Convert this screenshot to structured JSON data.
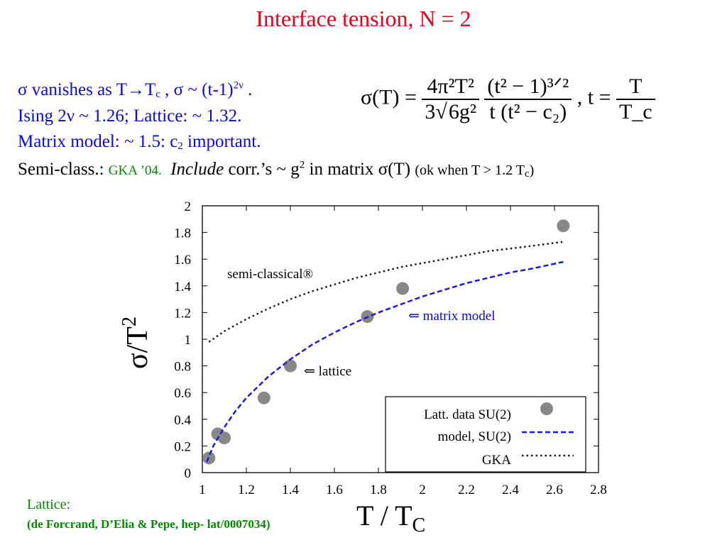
{
  "title": "Interface tension, N = 2",
  "bullets": {
    "line1": {
      "text_a": "σ vanishes as T→T",
      "sub_c": "c",
      "text_b": " , σ ~ (t-1)",
      "sup_exp": "2ν",
      "text_c": " ."
    },
    "line2": "Ising 2ν ~ 1.26; Lattice: ~ 1.32.",
    "line3": {
      "text_a": "Matrix model: ~ 1.5: c",
      "sub_2": "2",
      "text_b": " important."
    },
    "line4": {
      "prefix": "Semi-class.: ",
      "gka": "GKA ’04.",
      "include": "Include",
      "middle": " corr.’s ~ g",
      "sup_2": "2",
      "tail": " in matrix σ(T) ",
      "ok_a": "(ok when T > 1.2 T",
      "ok_sub": "c",
      "ok_b": ")"
    }
  },
  "formula": {
    "lhs": "σ(T) = ",
    "num1": "4π²T²",
    "den1_a": "3",
    "den1_root": "6g²",
    "num2": "(t² − 1)³ᐟ²",
    "den2": "t (t² − c₂)",
    "sep": " , t = ",
    "num3": "T",
    "den3": "T_c"
  },
  "annotations": {
    "semi_classical": "semi-classical®",
    "matrix_model": "⇐ matrix model",
    "lattice": "⇐ lattice"
  },
  "lattice_note": {
    "title": "Lattice:",
    "ref": "(de Forcrand, D’Elia & Pepe, hep- lat/0007034)"
  },
  "colors": {
    "title": "#e8001c",
    "blue_text": "#0b0bd0",
    "green_text": "#008a00",
    "model_line": "#1a1ad8",
    "gka_line": "#1a1a1a",
    "points": "#888888"
  },
  "chart_data": {
    "type": "scatter",
    "xlabel": "T / T",
    "xlabel_sub": "C",
    "ylabel": "σ/T",
    "ylabel_sup": "2",
    "xlim": [
      1,
      2.8
    ],
    "ylim": [
      0,
      2
    ],
    "xticks": [
      "1",
      "1.2",
      "1.4",
      "1.6",
      "1.8",
      "2",
      "2.2",
      "2.4",
      "2.6",
      "2.8"
    ],
    "yticks": [
      "0",
      "0.2",
      "0.4",
      "0.6",
      "0.8",
      "1",
      "1.2",
      "1.4",
      "1.6",
      "1.8",
      "2"
    ],
    "grid": false,
    "legend_position": "bottom-right",
    "series": [
      {
        "name": "Latt. data SU(2)",
        "kind": "points",
        "x": [
          1.03,
          1.07,
          1.1,
          1.28,
          1.4,
          1.75,
          1.91,
          2.64
        ],
        "y": [
          0.11,
          0.29,
          0.26,
          0.56,
          0.8,
          1.17,
          1.38,
          1.85
        ]
      },
      {
        "name": "model, SU(2)",
        "kind": "dashed-line",
        "x": [
          1.02,
          1.05,
          1.1,
          1.15,
          1.2,
          1.3,
          1.4,
          1.5,
          1.6,
          1.7,
          1.8,
          1.9,
          2.0,
          2.1,
          2.2,
          2.3,
          2.4,
          2.5,
          2.64
        ],
        "y": [
          0.08,
          0.2,
          0.34,
          0.46,
          0.56,
          0.72,
          0.85,
          0.96,
          1.05,
          1.13,
          1.2,
          1.26,
          1.32,
          1.37,
          1.42,
          1.46,
          1.5,
          1.53,
          1.58
        ]
      },
      {
        "name": "GKA",
        "kind": "dotted-line",
        "x": [
          1.03,
          1.1,
          1.2,
          1.3,
          1.4,
          1.5,
          1.6,
          1.7,
          1.8,
          1.9,
          2.0,
          2.1,
          2.2,
          2.3,
          2.4,
          2.5,
          2.64
        ],
        "y": [
          0.98,
          1.06,
          1.15,
          1.23,
          1.3,
          1.36,
          1.41,
          1.46,
          1.5,
          1.54,
          1.57,
          1.6,
          1.63,
          1.66,
          1.68,
          1.7,
          1.73
        ]
      }
    ]
  }
}
